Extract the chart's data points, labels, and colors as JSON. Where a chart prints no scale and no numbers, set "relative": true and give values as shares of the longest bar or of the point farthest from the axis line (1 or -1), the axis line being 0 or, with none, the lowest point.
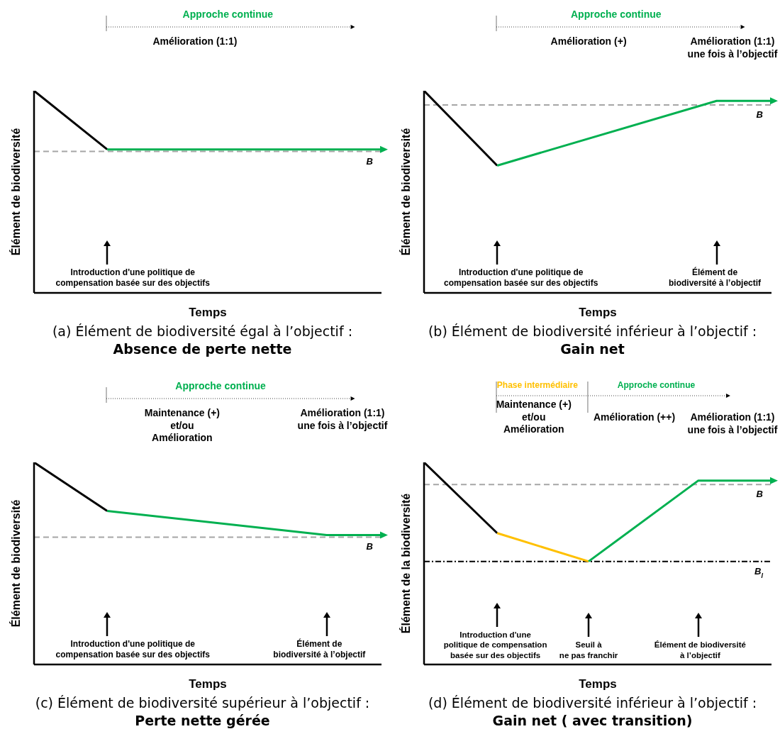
{
  "chart_data": [
    {
      "type": "line",
      "title": "(a) Élément de biodiversité égal à l’objectif :",
      "subtitle": "Absence de perte nette",
      "xlabel": "Temps",
      "ylabel": "Élément de biodiversité",
      "relative": true,
      "line_style": "solid",
      "tick_labels": false,
      "categories": [
        null,
        null,
        null,
        null,
        null,
        null,
        null,
        null,
        null,
        null,
        null,
        null,
        null,
        null,
        null,
        null,
        null,
        null,
        null,
        null
      ],
      "series": [
        {
          "color": "#000000",
          "values": [
            1,
            null,
            null,
            null,
            0.71,
            null,
            null,
            null,
            null,
            null,
            null,
            null,
            null,
            null,
            null,
            null,
            null,
            null,
            null,
            null
          ]
        },
        {
          "color": "#00b050",
          "values": [
            null,
            null,
            null,
            null,
            0.71,
            null,
            null,
            null,
            null,
            null,
            null,
            null,
            null,
            null,
            null,
            null,
            null,
            null,
            null,
            0.71
          ]
        }
      ],
      "ref_lines": [
        {
          "axis": "y",
          "value": 0.7,
          "label": "B",
          "color": "#a6a6a6",
          "line_style": "dashed"
        }
      ],
      "annotations": [
        "Approche continue",
        "Amélioration (1:1)",
        "Introduction d'une politique de\ncompensation basée sur des objectifs"
      ]
    },
    {
      "type": "line",
      "title": "(b) Élément de biodiversité inférieur à l’objectif :",
      "subtitle": "Gain net",
      "xlabel": "Temps",
      "ylabel": "Élément de biodiversité",
      "relative": true,
      "line_style": "solid",
      "tick_labels": false,
      "categories": [
        null,
        null,
        null,
        null,
        null,
        null,
        null,
        null,
        null,
        null,
        null,
        null,
        null,
        null,
        null,
        null,
        null,
        null,
        null,
        null
      ],
      "series": [
        {
          "color": "#000000",
          "values": [
            1,
            null,
            null,
            null,
            0.63,
            null,
            null,
            null,
            null,
            null,
            null,
            null,
            null,
            null,
            null,
            null,
            null,
            null,
            null,
            null
          ]
        },
        {
          "color": "#00b050",
          "values": [
            null,
            null,
            null,
            null,
            0.63,
            null,
            null,
            null,
            null,
            null,
            null,
            null,
            null,
            null,
            null,
            null,
            0.95,
            null,
            null,
            0.95
          ]
        }
      ],
      "ref_lines": [
        {
          "axis": "y",
          "value": 0.93,
          "label": "B",
          "color": "#a6a6a6",
          "line_style": "dashed"
        }
      ],
      "annotations": [
        "Approche continue",
        "Amélioration (+)",
        "Amélioration (1:1)\nune fois à l’objectif",
        "Introduction d'une politique de\ncompensation basée sur des objectifs",
        "Élément de\nbiodiversité à l’objectif"
      ]
    },
    {
      "type": "line",
      "title": "(c) Élément de biodiversité supérieur à l’objectif :",
      "subtitle": "Perte nette gérée",
      "xlabel": "Temps",
      "ylabel": "Élément de biodiversité",
      "relative": true,
      "line_style": "solid",
      "tick_labels": false,
      "categories": [
        null,
        null,
        null,
        null,
        null,
        null,
        null,
        null,
        null,
        null,
        null,
        null,
        null,
        null,
        null,
        null,
        null,
        null,
        null,
        null
      ],
      "series": [
        {
          "color": "#000000",
          "values": [
            1,
            null,
            null,
            null,
            0.76,
            null,
            null,
            null,
            null,
            null,
            null,
            null,
            null,
            null,
            null,
            null,
            null,
            null,
            null,
            null
          ]
        },
        {
          "color": "#00b050",
          "values": [
            null,
            null,
            null,
            null,
            0.76,
            null,
            null,
            null,
            null,
            null,
            null,
            null,
            null,
            null,
            null,
            null,
            0.64,
            null,
            null,
            0.64
          ]
        }
      ],
      "ref_lines": [
        {
          "axis": "y",
          "value": 0.63,
          "label": "B",
          "color": "#a6a6a6",
          "line_style": "dashed"
        }
      ],
      "annotations": [
        "Approche continue",
        "Maintenance (+)\net/ou\nAmélioration",
        "Amélioration (1:1)\nune fois à l’objectif",
        "Introduction d'une politique de\ncompensation basée sur des objectifs",
        "Élément de\nbiodiversité à l’objectif"
      ]
    },
    {
      "type": "line",
      "title": "(d) Élément de biodiversité inférieur à l’objectif :",
      "subtitle": "Gain net ( avec transition)",
      "xlabel": "Temps",
      "ylabel": "Élément de la biodiversité",
      "relative": true,
      "line_style": "solid",
      "tick_labels": false,
      "categories": [
        null,
        null,
        null,
        null,
        null,
        null,
        null,
        null,
        null,
        null,
        null,
        null,
        null,
        null,
        null,
        null,
        null,
        null,
        null,
        null
      ],
      "series": [
        {
          "color": "#000000",
          "values": [
            1,
            null,
            null,
            null,
            0.65,
            null,
            null,
            null,
            null,
            null,
            null,
            null,
            null,
            null,
            null,
            null,
            null,
            null,
            null,
            null
          ]
        },
        {
          "color": "#ffc000",
          "values": [
            null,
            null,
            null,
            null,
            0.65,
            null,
            null,
            null,
            null,
            0.51,
            null,
            null,
            null,
            null,
            null,
            null,
            null,
            null,
            null,
            null
          ]
        },
        {
          "color": "#00b050",
          "values": [
            null,
            null,
            null,
            null,
            null,
            null,
            null,
            null,
            null,
            0.51,
            null,
            null,
            null,
            null,
            null,
            0.91,
            null,
            null,
            null,
            0.91
          ]
        }
      ],
      "ref_lines": [
        {
          "axis": "y",
          "value": 0.89,
          "label": "B",
          "color": "#a6a6a6",
          "line_style": "dashed"
        },
        {
          "axis": "y",
          "value": 0.51,
          "label": "B$_{l}$",
          "color": "#000000",
          "line_style": "dotted"
        }
      ],
      "annotations": [
        "Phase intermédiaire",
        "Approche continue",
        "Maintenance (+)\net/ou\nAmélioration",
        "Amélioration (++)",
        "Amélioration (1:1)\nune fois à l’objectif",
        "Introduction d'une\npolitique de compensation\nbasée sur des objectifs",
        "Seuil à\nne pas franchir",
        "Élément de biodiversité\nà l’objectif"
      ]
    }
  ]
}
